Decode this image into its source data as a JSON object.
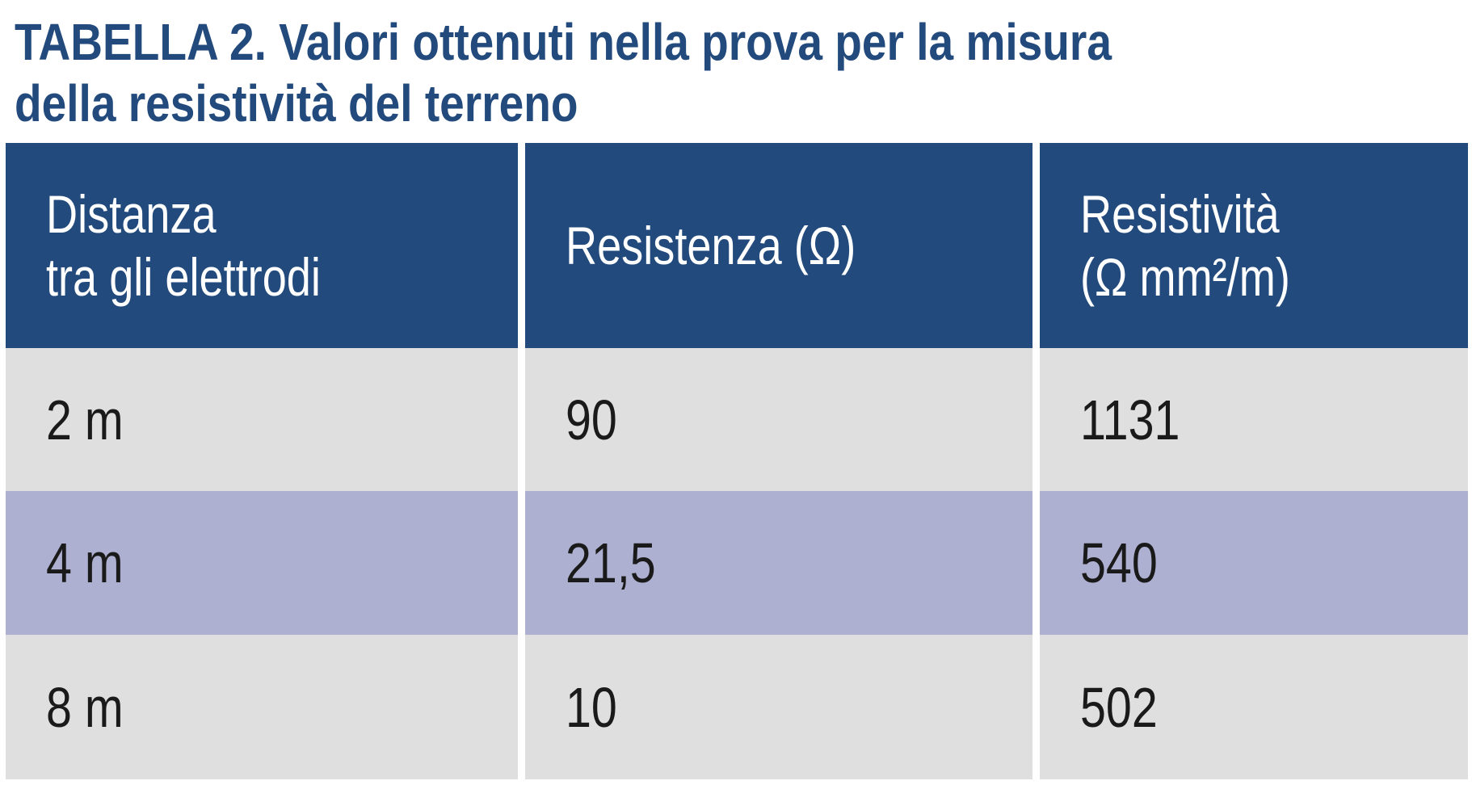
{
  "header": {
    "title_lines": [
      "TABELLA  2. Valori ottenuti nella prova per la misura",
      "della resistività del terreno"
    ]
  },
  "table": {
    "columns": [
      [
        "Distanza",
        "tra gli elettrodi"
      ],
      [
        "Resistenza (Ω)"
      ],
      [
        "Resistività",
        "(Ω mm²/m)"
      ]
    ],
    "rows": [
      [
        "2 m",
        "90",
        "1131"
      ],
      [
        "4 m",
        "21,5",
        "540"
      ],
      [
        "8 m",
        "10",
        "502"
      ]
    ]
  }
}
